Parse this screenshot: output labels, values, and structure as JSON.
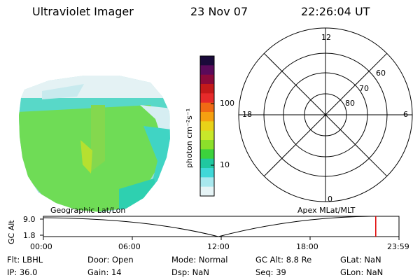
{
  "header": {
    "title": "Ultraviolet Imager",
    "date": "23 Nov 07",
    "time": "22:26:04 UT"
  },
  "colorbar": {
    "label": "photon cm⁻²s⁻¹",
    "ticks": [
      "100",
      "10"
    ],
    "colors": [
      "#1a0a3a",
      "#5a0a5a",
      "#8b0a3a",
      "#c41a1a",
      "#e62a2a",
      "#f06a14",
      "#f5a010",
      "#e8d218",
      "#c8e82a",
      "#8ce02a",
      "#3cd23c",
      "#20c8a0",
      "#40d8d8",
      "#a8e8ee",
      "#e6f4f6"
    ]
  },
  "polar": {
    "mlt_labels": [
      "12",
      "18",
      "6",
      "0"
    ],
    "lat_labels": [
      "60",
      "70",
      "80"
    ]
  },
  "timeline": {
    "left_title": "Geographic Lat/Lon",
    "right_title": "Apex MLat/MLT",
    "axis_label": "GC Alt",
    "y_ticks": [
      "9.0",
      "1.8"
    ],
    "x_ticks": [
      "00:00",
      "06:00",
      "12:00",
      "18:00",
      "23:59"
    ],
    "current_time_fraction": 0.9347
  },
  "info": {
    "flt": "Flt: LBHL",
    "ip": "IP: 36.0",
    "door": "Door: Open",
    "gain": "Gain: 14",
    "mode": "Mode: Normal",
    "dsp": "Dsp:     NaN",
    "gcalt": "GC Alt: 8.8 Re",
    "seq": "Seq: 39",
    "glat": "GLat:     NaN",
    "glon": "GLon:     NaN"
  }
}
